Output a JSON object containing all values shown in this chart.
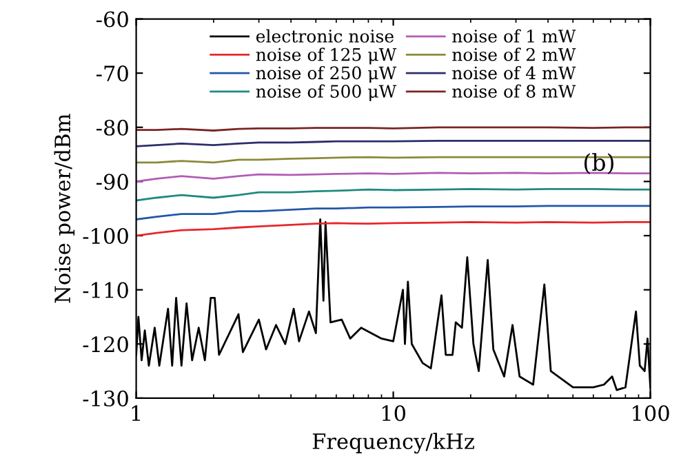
{
  "chart_data": {
    "type": "line",
    "xlabel": "Frequency/kHz",
    "ylabel": "Noise power/dBm",
    "log": "x",
    "grid": false,
    "legend": "top",
    "xlim": [
      1,
      100
    ],
    "xticks": [
      1,
      10,
      100
    ],
    "ylim": [
      -130,
      -60
    ],
    "yticks": [
      -130,
      -120,
      -110,
      -100,
      -90,
      -80,
      -70,
      -60
    ],
    "annotations": [
      "(b)"
    ],
    "series": [
      {
        "name": "electronic noise",
        "color": "#000000",
        "x": [
          1.0,
          1.02,
          1.05,
          1.08,
          1.12,
          1.18,
          1.23,
          1.33,
          1.38,
          1.43,
          1.5,
          1.57,
          1.65,
          1.75,
          1.85,
          1.95,
          2.02,
          2.1,
          2.5,
          2.6,
          3.0,
          3.2,
          3.5,
          3.8,
          4.1,
          4.3,
          4.7,
          5.0,
          5.2,
          5.35,
          5.45,
          5.7,
          6.3,
          6.8,
          7.5,
          9,
          10,
          10.9,
          11.1,
          11.4,
          11.8,
          13,
          14,
          15.4,
          16,
          17,
          17.5,
          18.5,
          19.4,
          20.5,
          21.5,
          23.3,
          24.5,
          27,
          29.1,
          31,
          35,
          38.7,
          41,
          50,
          60,
          66,
          71,
          74,
          80,
          87.9,
          91,
          95,
          97.5,
          100
        ],
        "values": [
          -122,
          -115,
          -123,
          -117.5,
          -124,
          -117,
          -124,
          -113.5,
          -124,
          -111.5,
          -124,
          -112.5,
          -123,
          -117,
          -123,
          -111.5,
          -111.5,
          -122,
          -114.5,
          -121.5,
          -115.5,
          -121,
          -116.5,
          -120,
          -113.5,
          -119.5,
          -114,
          -118,
          -97,
          -112,
          -97.5,
          -116,
          -115.5,
          -119,
          -117,
          -119,
          -119.5,
          -110,
          -120,
          -108.5,
          -120,
          -123.5,
          -124.5,
          -111,
          -122,
          -122,
          -116,
          -117,
          -104,
          -120,
          -125,
          -104.5,
          -121,
          -126,
          -116.5,
          -126,
          -127.5,
          -109,
          -125,
          -128,
          -128,
          -127.5,
          -126,
          -128.5,
          -128,
          -114,
          -124,
          -125,
          -119,
          -128
        ]
      },
      {
        "name": "noise of 125 μW",
        "color": "#e8262a",
        "x": [
          1,
          1.2,
          1.5,
          2,
          2.5,
          3,
          4,
          5,
          6,
          8,
          10,
          15,
          20,
          30,
          40,
          60,
          80,
          100
        ],
        "values": [
          -100,
          -99.5,
          -99,
          -98.8,
          -98.5,
          -98.3,
          -98,
          -97.8,
          -97.7,
          -97.8,
          -97.7,
          -97.6,
          -97.5,
          -97.6,
          -97.5,
          -97.6,
          -97.5,
          -97.5
        ]
      },
      {
        "name": "noise of 250 μW",
        "color": "#2257a8",
        "x": [
          1,
          1.2,
          1.5,
          2,
          2.5,
          3,
          4,
          5,
          6,
          8,
          10,
          15,
          20,
          30,
          40,
          60,
          80,
          100
        ],
        "values": [
          -97,
          -96.5,
          -96,
          -96,
          -95.5,
          -95.5,
          -95.2,
          -95,
          -95,
          -94.8,
          -94.8,
          -94.7,
          -94.6,
          -94.6,
          -94.5,
          -94.5,
          -94.5,
          -94.5
        ]
      },
      {
        "name": "noise of 500 μW",
        "color": "#1e8a7e",
        "x": [
          1,
          1.2,
          1.5,
          2,
          2.5,
          3,
          4,
          5,
          6,
          8,
          10,
          15,
          20,
          30,
          40,
          60,
          80,
          100
        ],
        "values": [
          -93.5,
          -93,
          -92.5,
          -93,
          -92.5,
          -92,
          -92,
          -91.8,
          -91.7,
          -91.5,
          -91.6,
          -91.5,
          -91.4,
          -91.5,
          -91.4,
          -91.4,
          -91.5,
          -91.5
        ]
      },
      {
        "name": "noise of 1 mW",
        "color": "#b25cb5",
        "x": [
          1,
          1.2,
          1.5,
          2,
          2.5,
          3,
          4,
          5,
          6,
          8,
          10,
          15,
          20,
          30,
          40,
          60,
          80,
          100
        ],
        "values": [
          -90,
          -89.5,
          -89,
          -89.5,
          -89,
          -88.7,
          -88.8,
          -88.7,
          -88.6,
          -88.5,
          -88.6,
          -88.4,
          -88.5,
          -88.4,
          -88.5,
          -88.4,
          -88.5,
          -88.5
        ]
      },
      {
        "name": "noise of 2 mW",
        "color": "#8a8a3a",
        "x": [
          1,
          1.2,
          1.5,
          2,
          2.5,
          3,
          4,
          5,
          6,
          8,
          10,
          15,
          20,
          30,
          40,
          60,
          80,
          100
        ],
        "values": [
          -86.5,
          -86.5,
          -86.2,
          -86.5,
          -86,
          -86,
          -85.8,
          -85.7,
          -85.6,
          -85.5,
          -85.6,
          -85.5,
          -85.5,
          -85.5,
          -85.5,
          -85.5,
          -85.5,
          -85.5
        ]
      },
      {
        "name": "noise of 4 mW",
        "color": "#2c2c6c",
        "x": [
          1,
          1.2,
          1.5,
          2,
          2.5,
          3,
          4,
          5,
          6,
          8,
          10,
          15,
          20,
          30,
          40,
          60,
          80,
          100
        ],
        "values": [
          -83.5,
          -83.3,
          -83,
          -83.3,
          -83,
          -82.8,
          -82.8,
          -82.7,
          -82.6,
          -82.6,
          -82.6,
          -82.5,
          -82.5,
          -82.5,
          -82.5,
          -82.5,
          -82.5,
          -82.5
        ]
      },
      {
        "name": "noise of 8 mW",
        "color": "#7a2424",
        "x": [
          1,
          1.2,
          1.5,
          2,
          2.5,
          3,
          4,
          5,
          6,
          8,
          10,
          15,
          20,
          30,
          40,
          60,
          80,
          100
        ],
        "values": [
          -80.5,
          -80.5,
          -80.3,
          -80.6,
          -80.3,
          -80.2,
          -80.2,
          -80.1,
          -80.1,
          -80.1,
          -80.2,
          -80,
          -80,
          -80,
          -80,
          -80.1,
          -80,
          -80
        ]
      }
    ]
  }
}
